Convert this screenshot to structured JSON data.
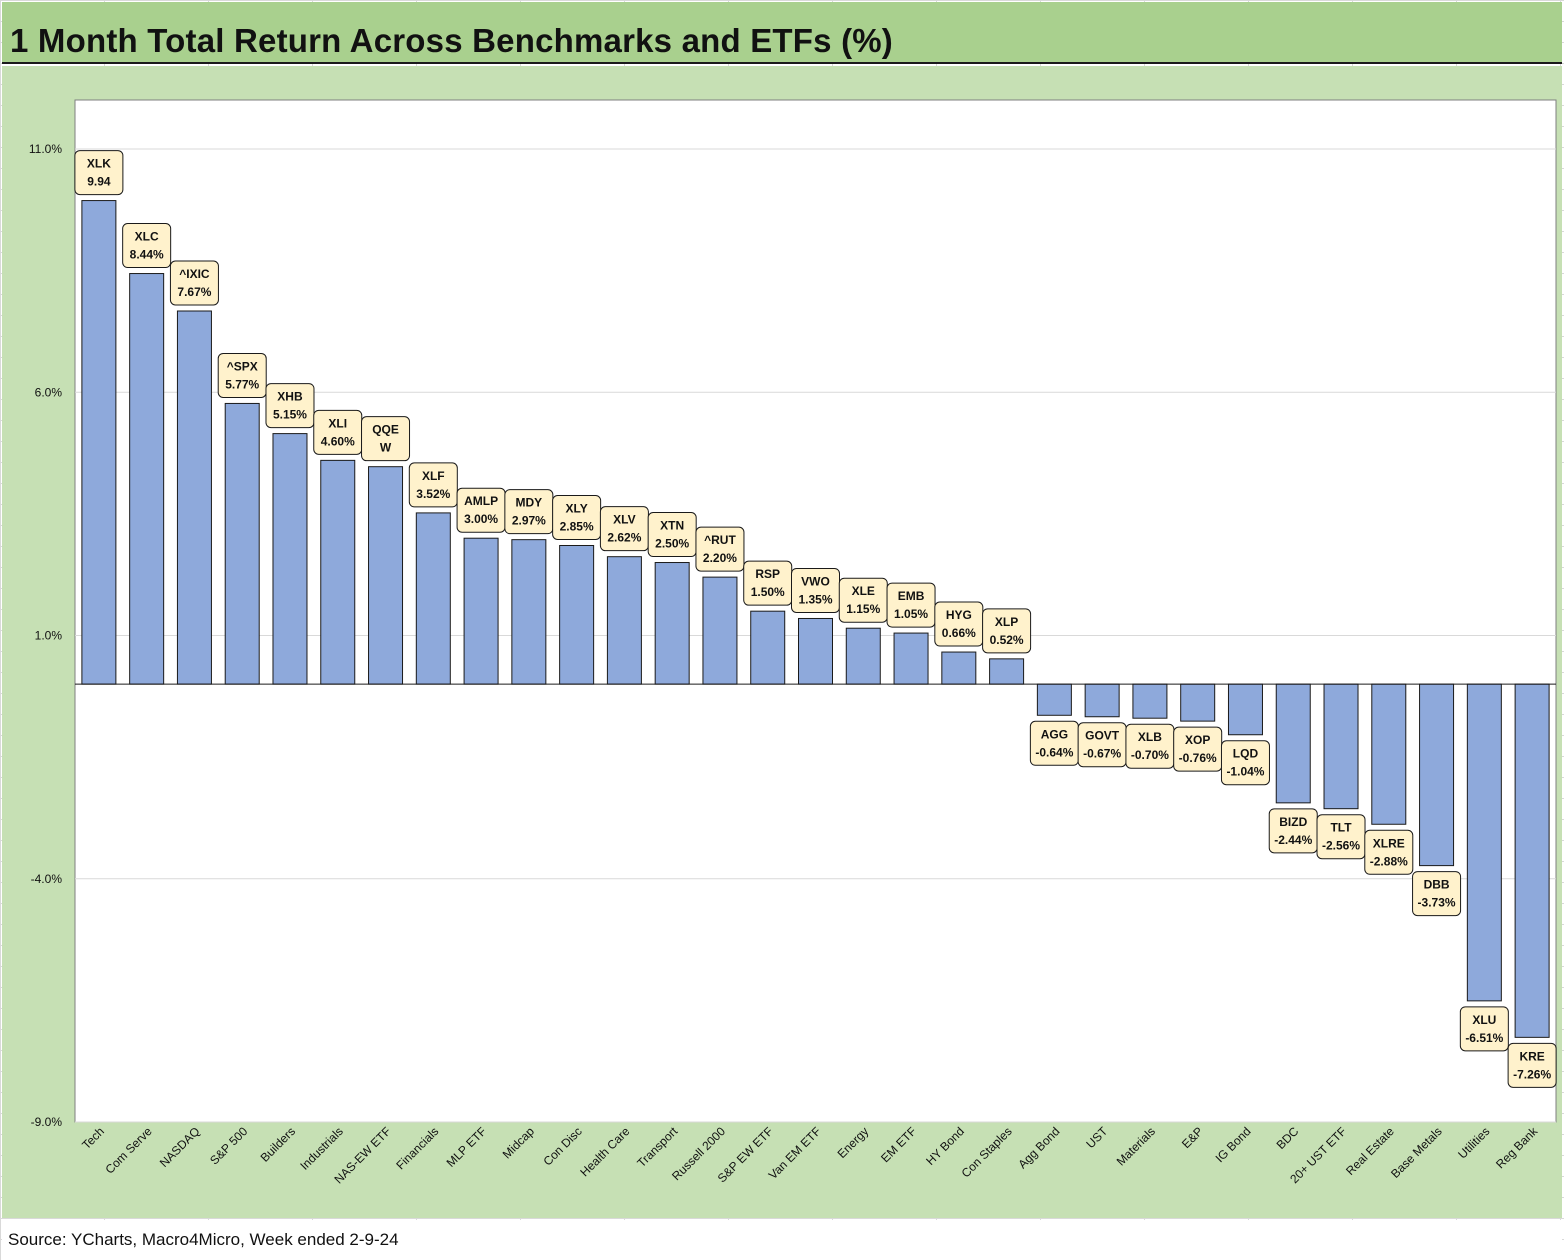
{
  "title": "1 Month Total Return Across Benchmarks and ETFs (%)",
  "source": "Source: YCharts, Macro4Micro, Week ended 2-9-24",
  "colors": {
    "bar": "#8ea9db",
    "label_box": "#fff2cc",
    "title_bg": "#a9d08e",
    "chart_bg": "#c6e0b4",
    "plot_bg": "#ffffff"
  },
  "chart_data": {
    "type": "bar",
    "title": "1 Month Total Return Across Benchmarks and ETFs (%)",
    "ylim": [
      -9,
      11
    ],
    "yticks": [
      -9,
      -4,
      1,
      6,
      11
    ],
    "ytick_labels": [
      "-9.0%",
      "-4.0%",
      "1.0%",
      "6.0%",
      "11.0%"
    ],
    "grid": true,
    "legend": "none",
    "categories": [
      "Tech",
      "Com Serve",
      "NASDAQ",
      "S&P 500",
      "Builders",
      "Industrials",
      "NAS-EW ETF",
      "Financials",
      "MLP ETF",
      "Midcap",
      "Con Disc",
      "Health Care",
      "Transport",
      "Russell 2000",
      "S&P EW ETF",
      "Van EM ETF",
      "Energy",
      "EM ETF",
      "HY Bond",
      "Con Staples",
      "Agg Bond",
      "UST",
      "Materials",
      "E&P",
      "IG Bond",
      "BDC",
      "20+ UST ETF",
      "Real Estate",
      "Base Metals",
      "Utilities",
      "Reg Bank"
    ],
    "tickers": [
      "XLK",
      "XLC",
      "^IXIC",
      "^SPX",
      "XHB",
      "XLI",
      "QQEW",
      "XLF",
      "AMLP",
      "MDY",
      "XLY",
      "XLV",
      "XTN",
      "^RUT",
      "RSP",
      "VWO",
      "XLE",
      "EMB",
      "HYG",
      "XLP",
      "AGG",
      "GOVT",
      "XLB",
      "XOP",
      "LQD",
      "BIZD",
      "TLT",
      "XLRE",
      "DBB",
      "XLU",
      "KRE"
    ],
    "label_lines": [
      [
        "XLK",
        "9.94"
      ],
      [
        "XLC",
        "8.44%"
      ],
      [
        "^IXIC",
        "7.67%"
      ],
      [
        "^SPX",
        "5.77%"
      ],
      [
        "XHB",
        "5.15%"
      ],
      [
        "XLI",
        "4.60%"
      ],
      [
        "QQE",
        "W"
      ],
      [
        "XLF",
        "3.52%"
      ],
      [
        "AMLP",
        "3.00%"
      ],
      [
        "MDY",
        "2.97%"
      ],
      [
        "XLY",
        "2.85%"
      ],
      [
        "XLV",
        "2.62%"
      ],
      [
        "XTN",
        "2.50%"
      ],
      [
        "^RUT",
        "2.20%"
      ],
      [
        "RSP",
        "1.50%"
      ],
      [
        "VWO",
        "1.35%"
      ],
      [
        "XLE",
        "1.15%"
      ],
      [
        "EMB",
        "1.05%"
      ],
      [
        "HYG",
        "0.66%"
      ],
      [
        "XLP",
        "0.52%"
      ],
      [
        "AGG",
        "-0.64%"
      ],
      [
        "GOVT",
        "-0.67%"
      ],
      [
        "XLB",
        "-0.70%"
      ],
      [
        "XOP",
        "-0.76%"
      ],
      [
        "LQD",
        "-1.04%"
      ],
      [
        "BIZD",
        "-2.44%"
      ],
      [
        "TLT",
        "-2.56%"
      ],
      [
        "XLRE",
        "-2.88%"
      ],
      [
        "DBB",
        "-3.73%"
      ],
      [
        "XLU",
        "-6.51%"
      ],
      [
        "KRE",
        "-7.26%"
      ]
    ],
    "values": [
      9.94,
      8.44,
      7.67,
      5.77,
      5.15,
      4.6,
      4.47,
      3.52,
      3.0,
      2.97,
      2.85,
      2.62,
      2.5,
      2.2,
      1.5,
      1.35,
      1.15,
      1.05,
      0.66,
      0.52,
      -0.64,
      -0.67,
      -0.7,
      -0.76,
      -1.04,
      -2.44,
      -2.56,
      -2.88,
      -3.73,
      -6.51,
      -7.26
    ]
  }
}
